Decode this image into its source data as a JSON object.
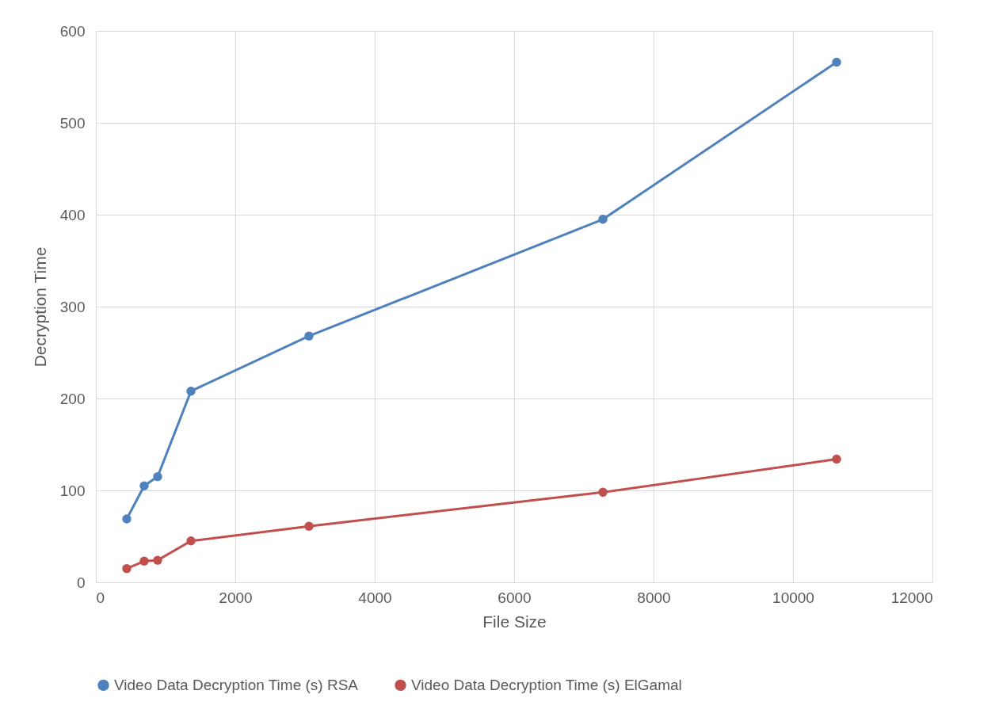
{
  "chart_data": {
    "type": "line",
    "xlabel": "File Size",
    "ylabel": "Decryption Time",
    "xlim": [
      0,
      12000
    ],
    "xticks": [
      0,
      2000,
      4000,
      6000,
      8000,
      10000,
      12000
    ],
    "ylim": [
      0,
      600
    ],
    "yticks": [
      0,
      100,
      200,
      300,
      400,
      500,
      600
    ],
    "grid": true,
    "legend": "bottom",
    "marker": "circle",
    "line_style": "solid",
    "series": [
      {
        "name": "Video Data Decryption Time (s) RSA",
        "color": "#4f81bd",
        "x": [
          443,
          693,
          886,
          1364,
          3057,
          7273,
          10625
        ],
        "values": [
          69,
          105,
          115,
          208,
          268,
          395,
          566
        ]
      },
      {
        "name": "Video Data Decryption Time (s) ElGamal",
        "color": "#c0504d",
        "x": [
          443,
          693,
          886,
          1364,
          3057,
          7273,
          10625
        ],
        "values": [
          15,
          23,
          24,
          45,
          61,
          98,
          134
        ]
      }
    ]
  }
}
